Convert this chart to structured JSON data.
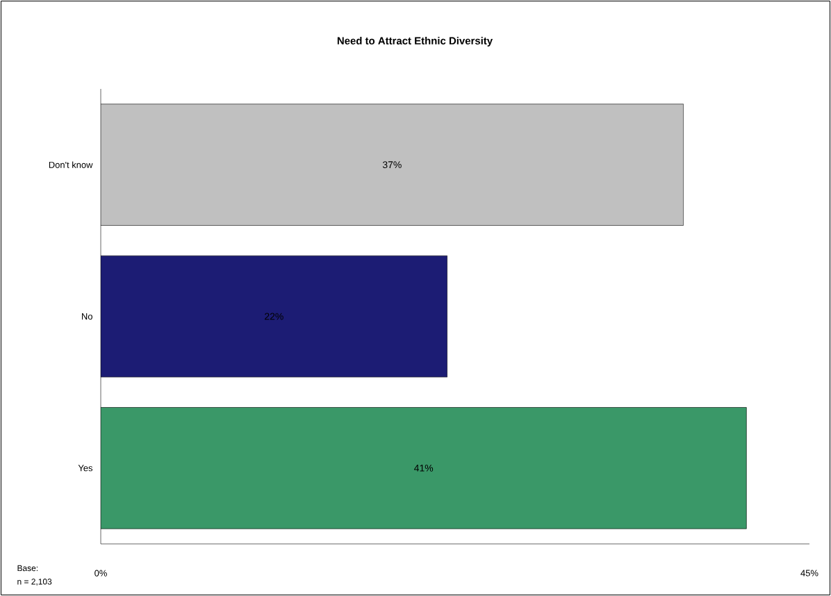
{
  "chart_data": {
    "type": "bar",
    "orientation": "horizontal",
    "title": "Need to Attract Ethnic Diversity",
    "categories": [
      "Don't know",
      "No",
      "Yes"
    ],
    "values": [
      37,
      22,
      41
    ],
    "colors": [
      "#c0c0c0",
      "#1c1c74",
      "#3a9868"
    ],
    "value_labels": [
      "37%",
      "22%",
      "41%"
    ],
    "xlim": [
      0,
      45
    ],
    "xticks": [
      {
        "value": 0,
        "label": "0%"
      },
      {
        "value": 45,
        "label": "45%"
      }
    ],
    "annotations": [
      "Base:",
      "n = 2,103"
    ]
  }
}
